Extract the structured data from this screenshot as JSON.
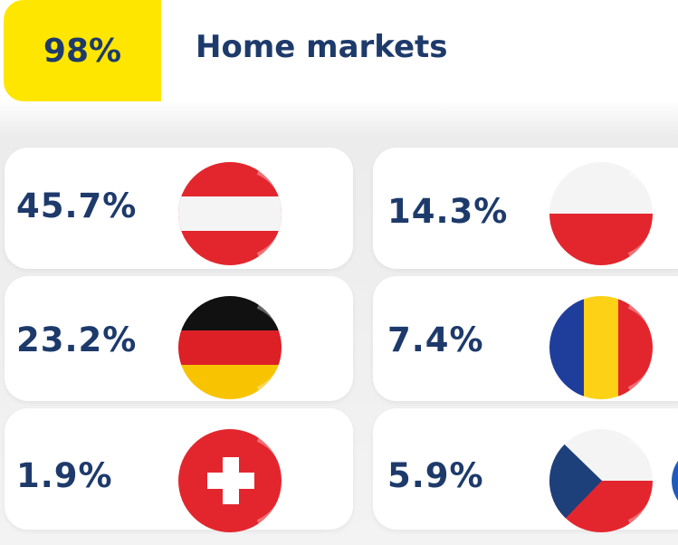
{
  "header": {
    "badge": "98%",
    "title": "Home markets"
  },
  "markets": [
    {
      "value": "45.7%"
    },
    {
      "value": "14.3%"
    },
    {
      "value": "23.2%"
    },
    {
      "value": "7.4%"
    },
    {
      "value": "1.9%"
    },
    {
      "value": "5.9%"
    }
  ]
}
